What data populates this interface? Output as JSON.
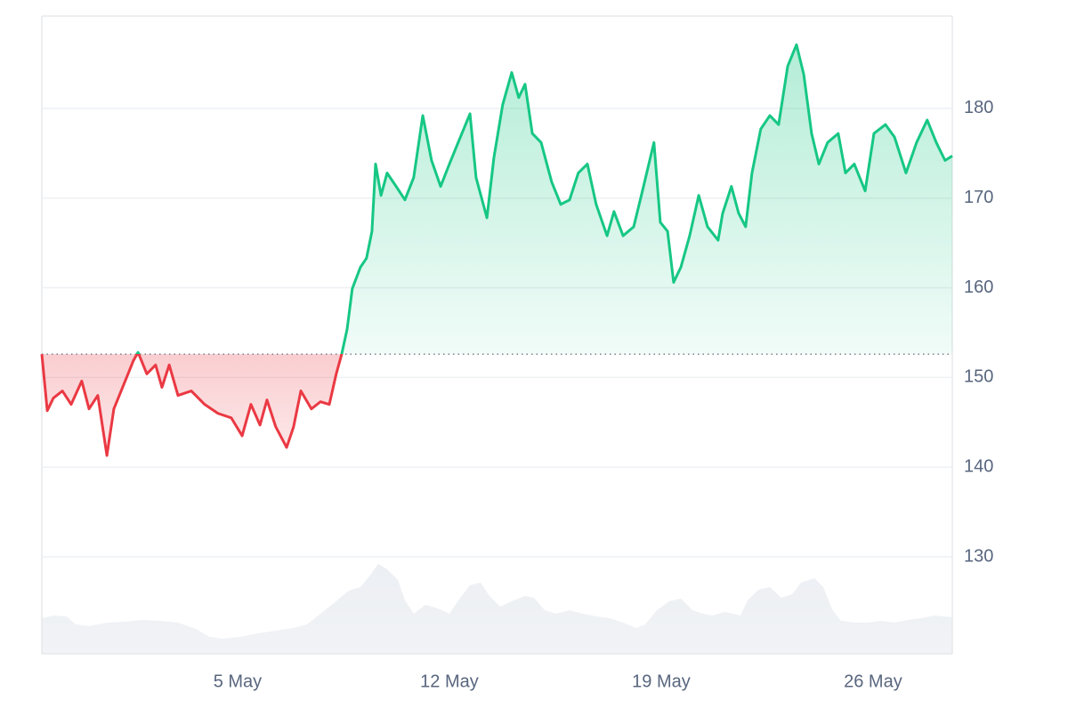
{
  "chart_data": {
    "type": "area-line",
    "up_color": "#16c784",
    "down_color": "#ea3943",
    "baseline": 152.6,
    "xlim": [
      -1.47,
      28.62
    ],
    "ylim": [
      119.2,
      190.3
    ],
    "yticks": [
      130,
      140,
      150,
      160,
      170,
      180
    ],
    "xticks": [
      {
        "value": 5,
        "label": "5 May"
      },
      {
        "value": 12,
        "label": "12 May"
      },
      {
        "value": 19,
        "label": "19 May"
      },
      {
        "value": 26,
        "label": "26 May"
      }
    ],
    "grid": true,
    "x": [
      -1.47,
      -1.29,
      -1.09,
      -0.79,
      -0.5,
      -0.15,
      0.09,
      0.38,
      0.68,
      0.91,
      1.26,
      1.56,
      1.71,
      2.0,
      2.29,
      2.5,
      2.74,
      3.03,
      3.47,
      3.91,
      4.35,
      4.79,
      5.15,
      5.44,
      5.74,
      5.97,
      6.26,
      6.62,
      6.85,
      7.09,
      7.44,
      7.74,
      8.03,
      8.26,
      8.44,
      8.62,
      8.79,
      9.06,
      9.26,
      9.44,
      9.56,
      9.74,
      9.94,
      10.24,
      10.53,
      10.82,
      11.12,
      11.41,
      11.71,
      12.0,
      12.29,
      12.68,
      12.88,
      13.24,
      13.47,
      13.76,
      14.06,
      14.29,
      14.5,
      14.74,
      15.03,
      15.38,
      15.68,
      15.97,
      16.26,
      16.56,
      16.85,
      17.21,
      17.44,
      17.74,
      18.09,
      18.38,
      18.76,
      18.97,
      19.21,
      19.41,
      19.65,
      19.94,
      20.24,
      20.53,
      20.88,
      21.03,
      21.32,
      21.56,
      21.79,
      22.0,
      22.29,
      22.59,
      22.88,
      23.18,
      23.47,
      23.71,
      23.97,
      24.21,
      24.5,
      24.85,
      25.09,
      25.38,
      25.74,
      26.03,
      26.41,
      26.71,
      27.09,
      27.44,
      27.79,
      28.09,
      28.38,
      28.62
    ],
    "values": [
      152.6,
      146.3,
      147.7,
      148.5,
      147.0,
      149.6,
      146.5,
      148.0,
      141.3,
      146.5,
      149.4,
      151.9,
      152.8,
      150.4,
      151.4,
      148.9,
      151.4,
      148.0,
      148.5,
      147.0,
      146.0,
      145.5,
      143.5,
      147.0,
      144.7,
      147.5,
      144.5,
      142.2,
      144.5,
      148.5,
      146.5,
      147.3,
      147.0,
      150.4,
      152.6,
      155.4,
      159.9,
      162.3,
      163.3,
      166.3,
      173.8,
      170.3,
      172.8,
      171.3,
      169.8,
      172.3,
      179.2,
      174.2,
      171.3,
      173.8,
      176.2,
      179.4,
      172.3,
      167.8,
      174.5,
      180.4,
      184.0,
      181.2,
      182.7,
      177.2,
      176.2,
      171.8,
      169.3,
      169.8,
      172.8,
      173.8,
      169.3,
      165.8,
      168.5,
      165.8,
      166.8,
      170.8,
      176.2,
      167.3,
      166.3,
      160.6,
      162.3,
      165.8,
      170.3,
      166.8,
      165.3,
      168.3,
      171.3,
      168.3,
      166.8,
      172.8,
      177.7,
      179.2,
      178.2,
      184.7,
      187.1,
      183.8,
      177.2,
      173.8,
      176.2,
      177.2,
      172.8,
      173.8,
      170.8,
      177.2,
      178.2,
      176.8,
      172.8,
      176.2,
      178.7,
      176.2,
      174.2,
      174.7
    ]
  }
}
